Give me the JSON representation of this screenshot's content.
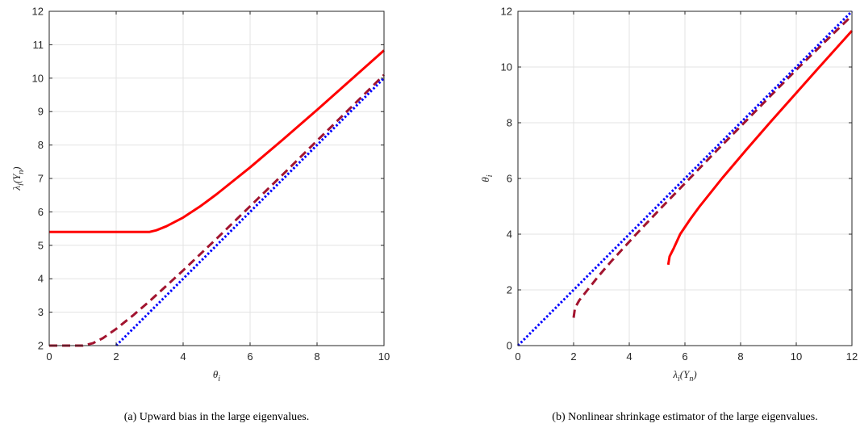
{
  "chart_data": [
    {
      "type": "line",
      "title": "",
      "caption": "(a) Upward bias in the large eigenvalues.",
      "xlabel": "θ_i",
      "ylabel": "λ_i(Y_n)",
      "xlim": [
        0,
        10
      ],
      "ylim": [
        2,
        12
      ],
      "xticks": [
        0,
        2,
        4,
        6,
        8,
        10
      ],
      "yticks": [
        2,
        3,
        4,
        5,
        6,
        7,
        8,
        9,
        10,
        11,
        12
      ],
      "grid": true,
      "series": [
        {
          "style": "solid",
          "color": "#ff0000",
          "x": [
            0,
            1,
            2,
            3,
            3.2,
            3.5,
            4,
            4.5,
            5,
            6,
            7,
            8,
            9,
            10
          ],
          "y": [
            5.4,
            5.4,
            5.4,
            5.4,
            5.45,
            5.57,
            5.83,
            6.16,
            6.53,
            7.33,
            8.18,
            9.05,
            9.94,
            10.83
          ]
        },
        {
          "style": "dashed",
          "color": "#a2142f",
          "x": [
            0,
            1,
            1.3,
            1.6,
            2,
            2.5,
            3,
            4,
            5,
            6,
            7,
            8,
            9,
            10
          ],
          "y": [
            2,
            2,
            2.07,
            2.22,
            2.5,
            2.9,
            3.33,
            4.25,
            5.2,
            6.17,
            7.14,
            8.13,
            9.11,
            10.1
          ]
        },
        {
          "style": "dotted",
          "color": "#0000ff",
          "x": [
            2,
            10
          ],
          "y": [
            2,
            10
          ]
        }
      ]
    },
    {
      "type": "line",
      "title": "",
      "caption": "(b) Nonlinear shrinkage estimator of the large eigenvalues.",
      "xlabel": "λ_i(Y_n)",
      "ylabel": "θ_i",
      "xlim": [
        0,
        12
      ],
      "ylim": [
        0,
        12
      ],
      "xticks": [
        0,
        2,
        4,
        6,
        8,
        10,
        12
      ],
      "yticks": [
        0,
        2,
        4,
        6,
        8,
        10,
        12
      ],
      "grid": true,
      "series": [
        {
          "style": "solid",
          "color": "#ff0000",
          "x": [
            5.4,
            5.45,
            5.6,
            5.83,
            6.2,
            6.53,
            7.33,
            8.18,
            9.05,
            9.94,
            10.83,
            12
          ],
          "y": [
            2.9,
            3.2,
            3.5,
            4.0,
            4.55,
            5.0,
            6.0,
            7.0,
            8.0,
            9.0,
            10.0,
            11.3
          ]
        },
        {
          "style": "dashed",
          "color": "#a2142f",
          "x": [
            2,
            2.05,
            2.2,
            2.5,
            2.9,
            3.33,
            4.25,
            5.2,
            6.17,
            7.14,
            8.13,
            9.11,
            10.1,
            12
          ],
          "y": [
            1.0,
            1.35,
            1.62,
            2.0,
            2.5,
            3.0,
            4.0,
            5.0,
            6.0,
            7.0,
            8.0,
            9.0,
            10.0,
            11.85
          ]
        },
        {
          "style": "dotted",
          "color": "#0000ff",
          "x": [
            0,
            12
          ],
          "y": [
            0,
            12
          ]
        }
      ]
    }
  ]
}
